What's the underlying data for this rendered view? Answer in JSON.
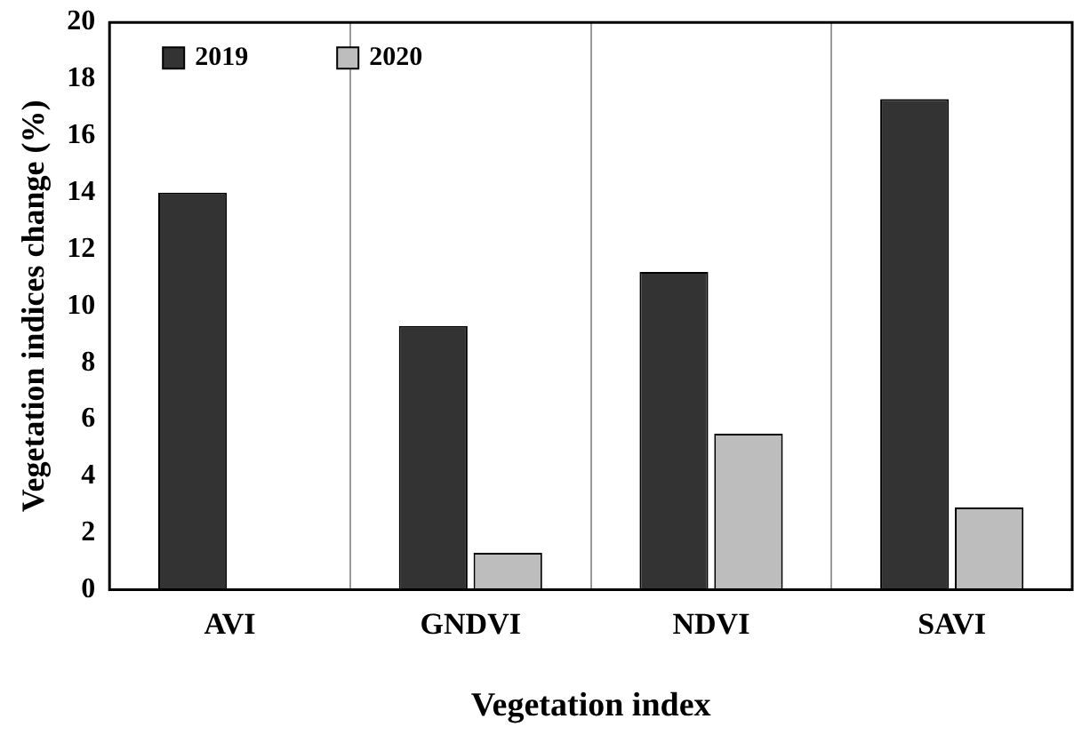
{
  "chart_data": {
    "type": "bar",
    "xlabel": "Vegetation index",
    "ylabel": "Vegetation indices change (%)",
    "categories": [
      "AVI",
      "GNDVI",
      "NDVI",
      "SAVI"
    ],
    "series": [
      {
        "name": "2019",
        "color": "#333333",
        "values": [
          14.0,
          9.3,
          11.2,
          17.3
        ]
      },
      {
        "name": "2020",
        "color": "#bdbdbd",
        "values": [
          null,
          1.3,
          5.5,
          2.9
        ]
      }
    ],
    "ylim": [
      0,
      20
    ],
    "yticks": [
      0,
      2,
      4,
      6,
      8,
      10,
      12,
      14,
      16,
      18,
      20
    ],
    "grid": "x",
    "legend": "top left"
  }
}
